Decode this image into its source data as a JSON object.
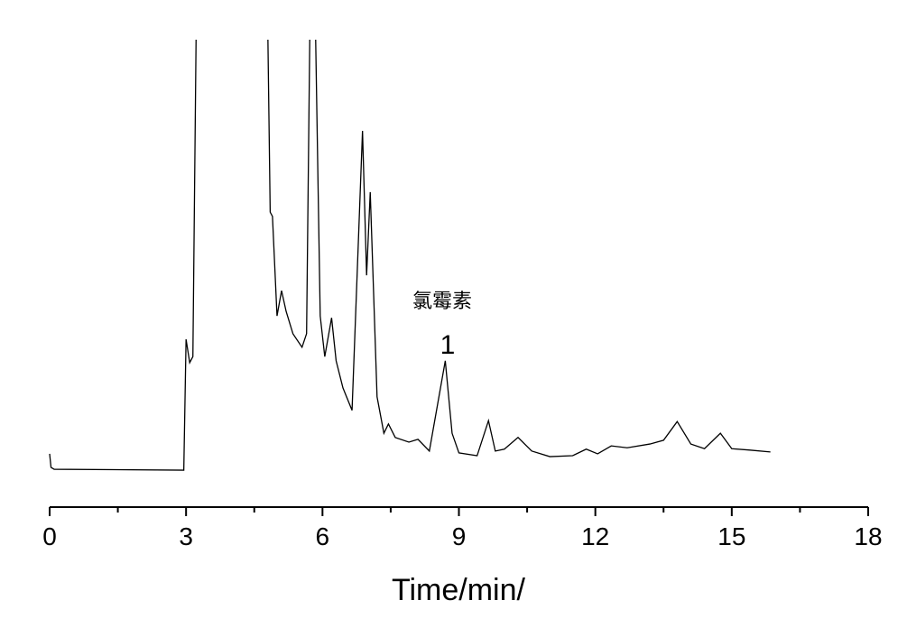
{
  "chart_data": {
    "type": "line",
    "xlabel": "Time/min/",
    "annotations": [
      "氯霉素",
      "1"
    ],
    "xlim": [
      0,
      18
    ],
    "xticks": [
      0,
      3,
      6,
      9,
      12,
      15,
      18
    ],
    "xminorticks": [
      1.5,
      4.5,
      7.5,
      10.5,
      13.5,
      16.5
    ],
    "ylim": [
      0,
      100
    ],
    "series": [
      {
        "color": "#000000",
        "x": [
          0.0,
          0.03,
          0.1,
          2.95,
          3.0,
          3.08,
          3.15,
          3.22,
          3.3,
          4.75,
          4.8,
          4.85,
          4.9,
          5.0,
          5.1,
          5.2,
          5.35,
          5.55,
          5.65,
          5.72,
          5.78,
          5.82,
          5.85,
          5.95,
          6.05,
          6.2,
          6.3,
          6.45,
          6.65,
          6.88,
          6.97,
          7.05,
          7.2,
          7.35,
          7.45,
          7.6,
          7.9,
          8.1,
          8.35,
          8.7,
          8.85,
          9.0,
          9.4,
          9.65,
          9.8,
          10.0,
          10.3,
          10.6,
          11.0,
          11.5,
          11.8,
          12.05,
          12.35,
          12.7,
          13.2,
          13.5,
          13.8,
          14.1,
          14.4,
          14.75,
          15.0,
          15.4,
          15.85
        ],
        "values": [
          11.4,
          8.5,
          8.1,
          7.9,
          35.9,
          30.9,
          32.2,
          100,
          150,
          150,
          100,
          63.1,
          62.2,
          40.9,
          46.3,
          41.9,
          37.1,
          34.2,
          37.1,
          100,
          150,
          150,
          100,
          40.9,
          32.2,
          40.5,
          31.3,
          25.5,
          20.7,
          80.5,
          49.6,
          67.4,
          23.6,
          15.8,
          17.8,
          14.9,
          13.9,
          14.5,
          12.0,
          31.3,
          15.8,
          11.6,
          11.0,
          18.5,
          12.0,
          12.4,
          14.9,
          12.0,
          10.8,
          11.0,
          12.4,
          11.4,
          13.1,
          12.7,
          13.5,
          14.3,
          18.3,
          13.5,
          12.5,
          15.8,
          12.5,
          12.2,
          11.8
        ]
      }
    ]
  }
}
